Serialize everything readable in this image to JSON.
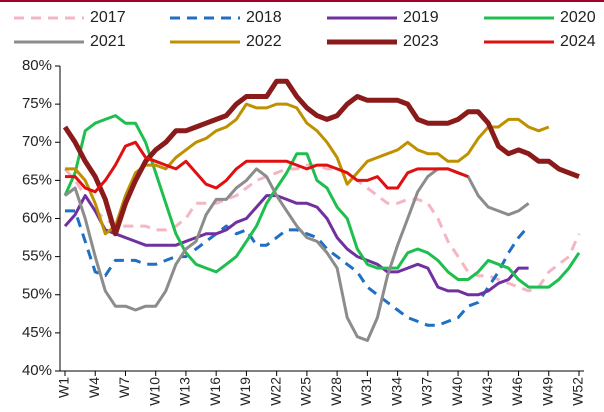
{
  "chart_data": {
    "type": "line",
    "categories": [
      "W1",
      null,
      null,
      "W4",
      null,
      null,
      "W7",
      null,
      null,
      "W10",
      null,
      null,
      "W13",
      null,
      null,
      "W16",
      null,
      null,
      "W19",
      null,
      null,
      "W22",
      null,
      null,
      "W25",
      null,
      null,
      "W28",
      null,
      null,
      "W31",
      null,
      null,
      "W34",
      null,
      null,
      "W37",
      null,
      null,
      "W40",
      null,
      null,
      "W43",
      null,
      null,
      "W46",
      null,
      null,
      "W49",
      null,
      null,
      "W52"
    ],
    "ylim": [
      40,
      80
    ],
    "yticks": [
      {
        "value": 40,
        "label": "40%"
      },
      {
        "value": 45,
        "label": "45%"
      },
      {
        "value": 50,
        "label": "50%"
      },
      {
        "value": 55,
        "label": "55%"
      },
      {
        "value": 60,
        "label": "60%"
      },
      {
        "value": 65,
        "label": "65%"
      },
      {
        "value": 70,
        "label": "70%"
      },
      {
        "value": 75,
        "label": "75%"
      },
      {
        "value": 80,
        "label": "80%"
      }
    ],
    "series": [
      {
        "name": "2017",
        "color": "#f4b6c2",
        "dashed": true,
        "line_width": 3,
        "values": [
          66.5,
          65,
          63,
          61,
          60,
          59,
          59,
          59,
          59,
          58.5,
          58.5,
          59,
          60,
          62,
          62,
          62,
          62.5,
          63,
          64,
          65,
          65.5,
          66,
          66.5,
          66.5,
          67,
          67,
          66.5,
          66.5,
          66,
          65,
          64,
          63,
          62,
          62,
          62.5,
          62.5,
          62,
          60,
          57,
          55,
          53,
          52.5,
          52.5,
          52,
          51.5,
          51,
          50.5,
          51,
          53,
          54,
          55,
          58
        ]
      },
      {
        "name": "2018",
        "color": "#1f6fc5",
        "dashed": true,
        "line_width": 3,
        "values": [
          61,
          61,
          57,
          53,
          52.5,
          54.5,
          54.5,
          54.5,
          54,
          54,
          54.5,
          55,
          55,
          56,
          57,
          58,
          59,
          58,
          58.5,
          56.5,
          56.5,
          57.5,
          58.5,
          58.5,
          58,
          57.5,
          56,
          55,
          54,
          53,
          51,
          50,
          49,
          48,
          47,
          46.5,
          46,
          46,
          46.5,
          47,
          48.5,
          49,
          51,
          53,
          55.5,
          57.5,
          59,
          null,
          null,
          null,
          null,
          null
        ]
      },
      {
        "name": "2019",
        "color": "#7030a0",
        "dashed": false,
        "line_width": 3,
        "values": [
          59,
          60.5,
          63,
          61,
          58.5,
          58,
          57.5,
          57,
          56.5,
          56.5,
          56.5,
          56.5,
          57,
          57.5,
          58,
          58,
          58.5,
          59.5,
          60,
          61.5,
          63,
          63,
          62.5,
          62,
          62,
          61.5,
          60,
          57.5,
          56,
          55,
          54.5,
          54,
          53,
          53,
          53.5,
          54,
          53.5,
          51,
          50.5,
          50.5,
          50,
          50,
          50.5,
          51.5,
          52,
          53.5,
          53.5,
          null,
          null,
          null,
          null,
          null
        ]
      },
      {
        "name": "2020",
        "color": "#1fbf4f",
        "dashed": false,
        "line_width": 3,
        "values": [
          63,
          66,
          71.5,
          72.5,
          73,
          73.5,
          72.5,
          72.5,
          70,
          66,
          62,
          58,
          55.5,
          54,
          53.5,
          53,
          54,
          55,
          57,
          59,
          62,
          64,
          66,
          68.5,
          68.5,
          65,
          64,
          61.5,
          60,
          56,
          54,
          53.5,
          53.5,
          53.5,
          55.5,
          56,
          55.5,
          54.5,
          53,
          52,
          52,
          53,
          54.5,
          54,
          53.5,
          52,
          51,
          51,
          51,
          52,
          53.5,
          55.5
        ]
      },
      {
        "name": "2021",
        "color": "#8c8c8c",
        "dashed": false,
        "line_width": 3,
        "values": [
          63,
          64,
          60,
          55,
          50.5,
          48.5,
          48.5,
          48,
          48.5,
          48.5,
          50.5,
          54,
          56,
          57,
          60.5,
          62.5,
          62.5,
          64,
          65,
          66.5,
          65.5,
          63,
          61,
          59,
          57.5,
          57,
          55.5,
          53.5,
          47,
          44.5,
          44,
          47,
          52.5,
          56.5,
          60,
          63.5,
          65.5,
          66.5,
          66.5,
          66,
          65.5,
          63,
          61.5,
          61,
          60.5,
          61,
          62,
          null,
          null,
          null,
          null,
          null
        ]
      },
      {
        "name": "2022",
        "color": "#bf9000",
        "dashed": false,
        "line_width": 3,
        "values": [
          66.5,
          66.5,
          65,
          62,
          58,
          59,
          63,
          66,
          67,
          67,
          66.5,
          68,
          69,
          70,
          70.5,
          71.5,
          72,
          73,
          75,
          74.5,
          74.5,
          75,
          75,
          74.5,
          72.5,
          71.5,
          70,
          68,
          64.5,
          66,
          67.5,
          68,
          68.5,
          69,
          70,
          69,
          68.5,
          68.5,
          67.5,
          67.5,
          68.5,
          70.5,
          72,
          72,
          73,
          73,
          72,
          71.5,
          72,
          null,
          null,
          null
        ]
      },
      {
        "name": "2023",
        "color": "#8b1a1a",
        "dashed": false,
        "line_width": 5,
        "values": [
          72,
          70,
          67.5,
          65.5,
          62.5,
          58,
          62,
          65,
          67.5,
          69,
          70,
          71.5,
          71.5,
          72,
          72.5,
          73,
          73.5,
          75,
          76,
          76,
          76,
          78,
          78,
          76,
          74.5,
          73.5,
          73,
          73.5,
          75,
          76,
          75.5,
          75.5,
          75.5,
          75.5,
          75,
          73,
          72.5,
          72.5,
          72.5,
          73,
          74,
          74,
          72.5,
          69.5,
          68.5,
          69,
          68.5,
          67.5,
          67.5,
          66.5,
          66,
          65.5
        ]
      },
      {
        "name": "2024",
        "color": "#e01010",
        "dashed": false,
        "line_width": 3,
        "values": [
          65.5,
          65.5,
          64,
          63.5,
          65,
          67,
          69.5,
          70,
          68,
          67.5,
          67,
          66.5,
          67.5,
          66,
          64.5,
          64,
          65,
          66.5,
          67.5,
          67.5,
          67.5,
          67.5,
          67.5,
          67,
          66.5,
          67,
          67,
          66.5,
          66,
          65,
          65,
          65.5,
          64,
          64,
          66,
          66.5,
          66.5,
          66.5,
          66.5,
          66,
          65.5,
          null,
          null,
          null,
          null,
          null,
          null,
          null,
          null,
          null,
          null,
          null
        ]
      }
    ]
  }
}
